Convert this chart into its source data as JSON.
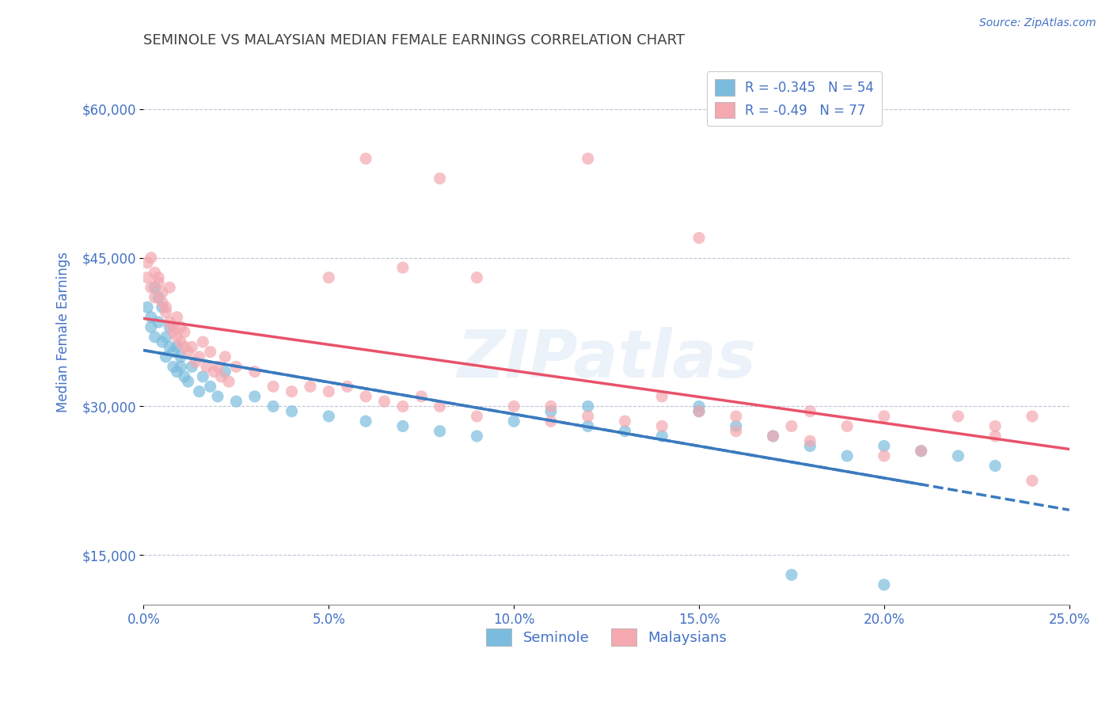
{
  "title": "SEMINOLE VS MALAYSIAN MEDIAN FEMALE EARNINGS CORRELATION CHART",
  "source_text": "Source: ZipAtlas.com",
  "ylabel": "Median Female Earnings",
  "xlim": [
    0.0,
    0.25
  ],
  "ylim": [
    10000,
    65000
  ],
  "yticks": [
    15000,
    30000,
    45000,
    60000
  ],
  "ytick_labels": [
    "$15,000",
    "$30,000",
    "$45,000",
    "$60,000"
  ],
  "xtick_labels": [
    "0.0%",
    "5.0%",
    "10.0%",
    "15.0%",
    "20.0%",
    "25.0%"
  ],
  "xticks": [
    0.0,
    0.05,
    0.1,
    0.15,
    0.2,
    0.25
  ],
  "seminole_color": "#7bbcde",
  "malaysian_color": "#f4a8b0",
  "seminole_line_color": "#3a7abf",
  "malaysian_line_color": "#e8526a",
  "seminole_R": -0.345,
  "seminole_N": 54,
  "malaysian_R": -0.49,
  "malaysian_N": 77,
  "legend_label_seminole": "Seminole",
  "legend_label_malaysian": "Malaysians",
  "watermark": "ZIPatlas",
  "background_color": "#ffffff",
  "grid_color": "#b0b8d0",
  "title_color": "#404040",
  "axis_label_color": "#4472c4",
  "tick_label_color": "#4472c4",
  "seminole_x": [
    0.001,
    0.002,
    0.002,
    0.003,
    0.003,
    0.004,
    0.004,
    0.005,
    0.005,
    0.006,
    0.006,
    0.007,
    0.007,
    0.008,
    0.008,
    0.009,
    0.009,
    0.01,
    0.01,
    0.011,
    0.012,
    0.013,
    0.015,
    0.016,
    0.018,
    0.02,
    0.022,
    0.025,
    0.03,
    0.035,
    0.04,
    0.05,
    0.06,
    0.07,
    0.08,
    0.09,
    0.1,
    0.11,
    0.12,
    0.13,
    0.14,
    0.15,
    0.16,
    0.17,
    0.18,
    0.19,
    0.2,
    0.21,
    0.22,
    0.23,
    0.12,
    0.15,
    0.175,
    0.2
  ],
  "seminole_y": [
    40000,
    39000,
    38000,
    42000,
    37000,
    38500,
    41000,
    36500,
    40000,
    37000,
    35000,
    36000,
    38000,
    35500,
    34000,
    33500,
    36000,
    34000,
    35000,
    33000,
    32500,
    34000,
    31500,
    33000,
    32000,
    31000,
    33500,
    30500,
    31000,
    30000,
    29500,
    29000,
    28500,
    28000,
    27500,
    27000,
    28500,
    29500,
    28000,
    27500,
    27000,
    30000,
    28000,
    27000,
    26000,
    25000,
    26000,
    25500,
    25000,
    24000,
    30000,
    29500,
    13000,
    12000
  ],
  "malaysian_x": [
    0.001,
    0.001,
    0.002,
    0.002,
    0.003,
    0.003,
    0.004,
    0.004,
    0.005,
    0.005,
    0.006,
    0.006,
    0.007,
    0.007,
    0.008,
    0.008,
    0.009,
    0.009,
    0.01,
    0.01,
    0.011,
    0.011,
    0.012,
    0.013,
    0.014,
    0.015,
    0.016,
    0.017,
    0.018,
    0.019,
    0.02,
    0.021,
    0.022,
    0.023,
    0.025,
    0.03,
    0.035,
    0.04,
    0.045,
    0.05,
    0.055,
    0.06,
    0.065,
    0.07,
    0.075,
    0.08,
    0.09,
    0.1,
    0.11,
    0.12,
    0.13,
    0.14,
    0.15,
    0.16,
    0.17,
    0.18,
    0.19,
    0.2,
    0.21,
    0.22,
    0.23,
    0.24,
    0.05,
    0.07,
    0.09,
    0.11,
    0.14,
    0.16,
    0.18,
    0.2,
    0.06,
    0.08,
    0.12,
    0.15,
    0.175,
    0.23,
    0.24
  ],
  "malaysian_y": [
    43000,
    44500,
    42000,
    45000,
    43500,
    41000,
    43000,
    42500,
    41500,
    40500,
    40000,
    39500,
    38500,
    42000,
    38000,
    37500,
    39000,
    37000,
    36500,
    38000,
    36000,
    37500,
    35500,
    36000,
    34500,
    35000,
    36500,
    34000,
    35500,
    33500,
    34000,
    33000,
    35000,
    32500,
    34000,
    33500,
    32000,
    31500,
    32000,
    31500,
    32000,
    31000,
    30500,
    30000,
    31000,
    30000,
    29000,
    30000,
    28500,
    29000,
    28500,
    28000,
    29500,
    27500,
    27000,
    26500,
    28000,
    25000,
    25500,
    29000,
    27000,
    22500,
    43000,
    44000,
    43000,
    30000,
    31000,
    29000,
    29500,
    29000,
    55000,
    53000,
    55000,
    47000,
    28000,
    28000,
    29000
  ]
}
